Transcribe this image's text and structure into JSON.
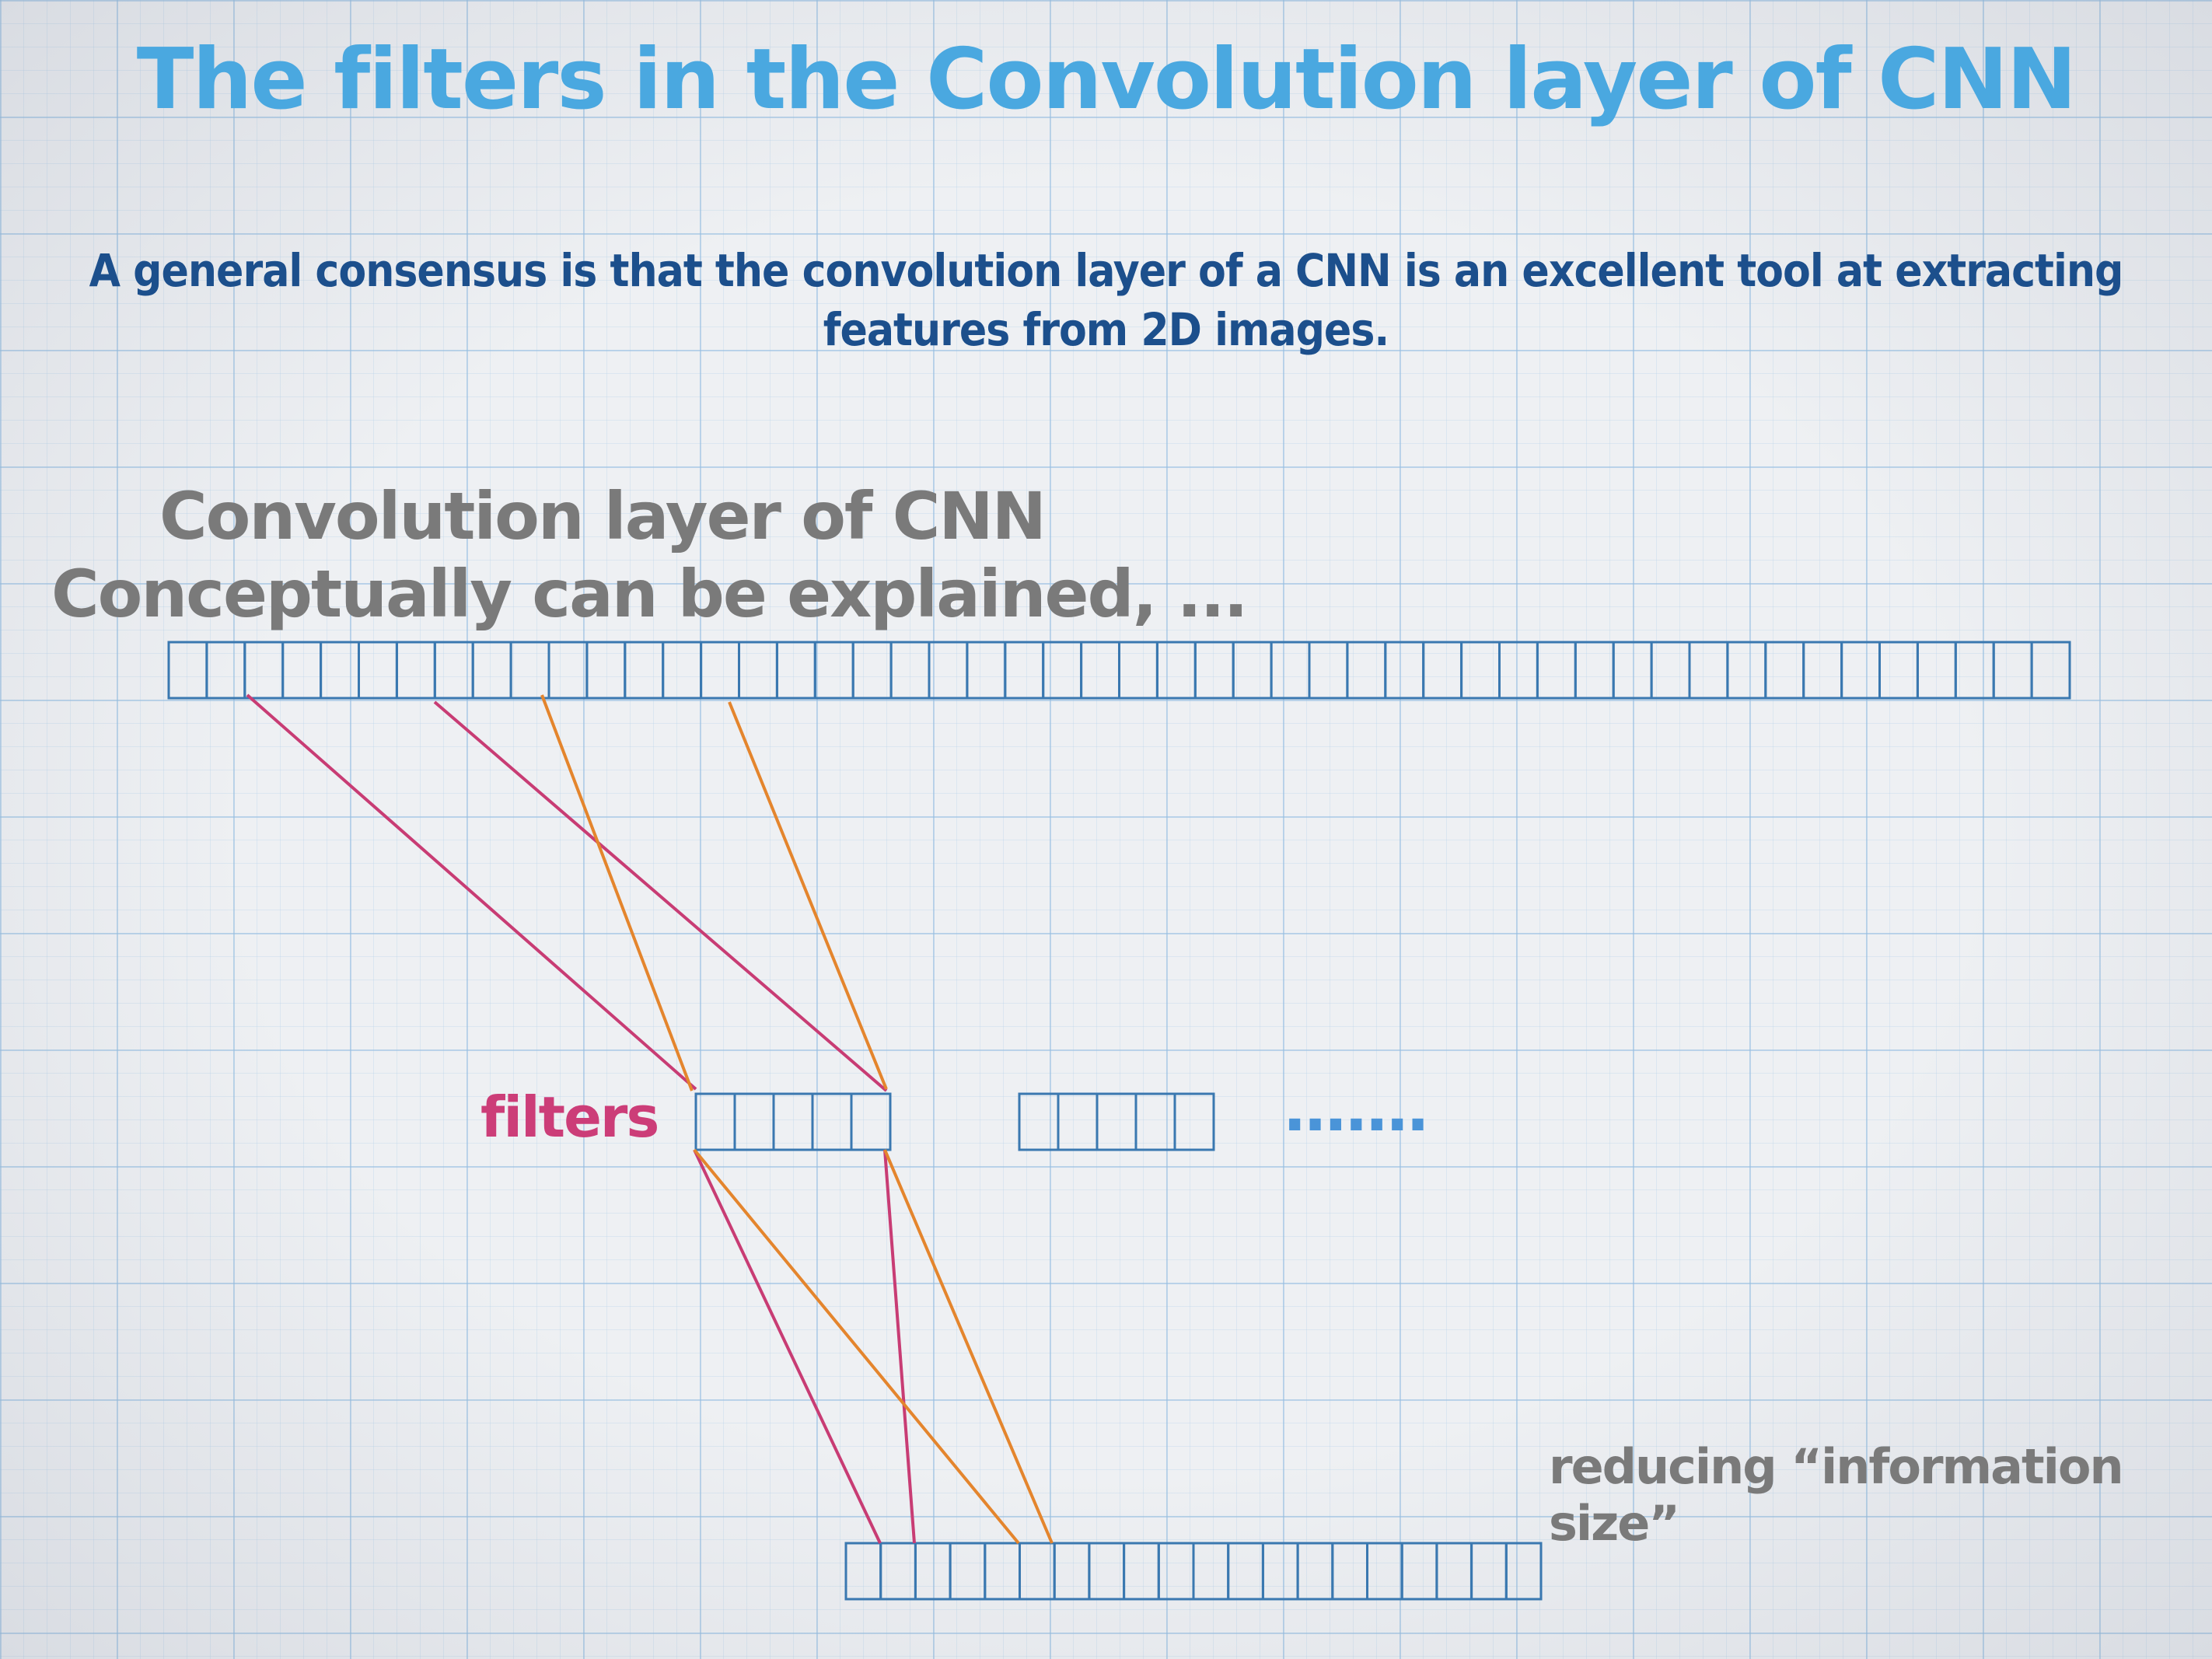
{
  "title": "The filters in the Convolution layer of CNN",
  "subtitle": "A general consensus is that the convolution layer of a CNN is an excellent tool at extracting features from 2D images.",
  "concept_line1": "Convolution layer of CNN",
  "concept_line2": "Conceptually can be explained, ...",
  "filters_label": "filters",
  "ellipsis": ".......",
  "reducing_label": "reducing “information size”",
  "colors": {
    "title": "#4aa8e0",
    "subtitle": "#1c4f8c",
    "annotation": "#7a7a7a",
    "filter_label": "#cc3d78",
    "cells": "#3a78b0",
    "pink_line": "#c83c74",
    "orange_line": "#e4852d"
  }
}
